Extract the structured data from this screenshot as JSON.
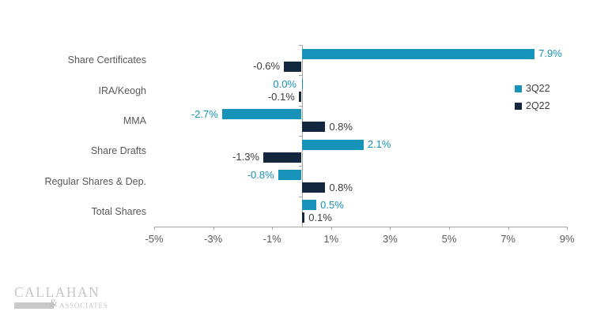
{
  "chart_data": {
    "type": "bar",
    "orientation": "horizontal",
    "title": "",
    "categories": [
      "Share Certificates",
      "IRA/Keogh",
      "MMA",
      "Share Drafts",
      "Regular Shares & Dep.",
      "Total Shares"
    ],
    "series": [
      {
        "name": "3Q22",
        "color": "#1792B8",
        "label_color": "#1792B8",
        "values": [
          7.9,
          0.0,
          -2.7,
          2.1,
          -0.8,
          0.5
        ],
        "labels": [
          "7.9%",
          "0.0%",
          "-2.7%",
          "2.1%",
          "-0.8%",
          "0.5%"
        ]
      },
      {
        "name": "2Q22",
        "color": "#13273F",
        "label_color": "#3C3C3C",
        "values": [
          -0.6,
          -0.1,
          0.8,
          -1.3,
          0.8,
          0.1
        ],
        "labels": [
          "-0.6%",
          "-0.1%",
          "0.8%",
          "-1.3%",
          "0.8%",
          "0.1%"
        ]
      }
    ],
    "x_axis": {
      "min": -5,
      "max": 9,
      "ticks": [
        {
          "value": -5,
          "label": "-5%"
        },
        {
          "value": -3,
          "label": "-3%"
        },
        {
          "value": -1,
          "label": "-1%"
        },
        {
          "value": 1,
          "label": "1%"
        },
        {
          "value": 3,
          "label": "3%"
        },
        {
          "value": 5,
          "label": "5%"
        },
        {
          "value": 7,
          "label": "7%"
        },
        {
          "value": 9,
          "label": "9%"
        }
      ]
    },
    "legend_position": "right",
    "grid": false,
    "colors": {
      "axis": "#A6A6A6",
      "axis_text": "#595959",
      "category_text": "#595959"
    }
  },
  "logo": {
    "name": "CALLAHAN",
    "amp": "&",
    "subname": "ASSOCIATES"
  }
}
